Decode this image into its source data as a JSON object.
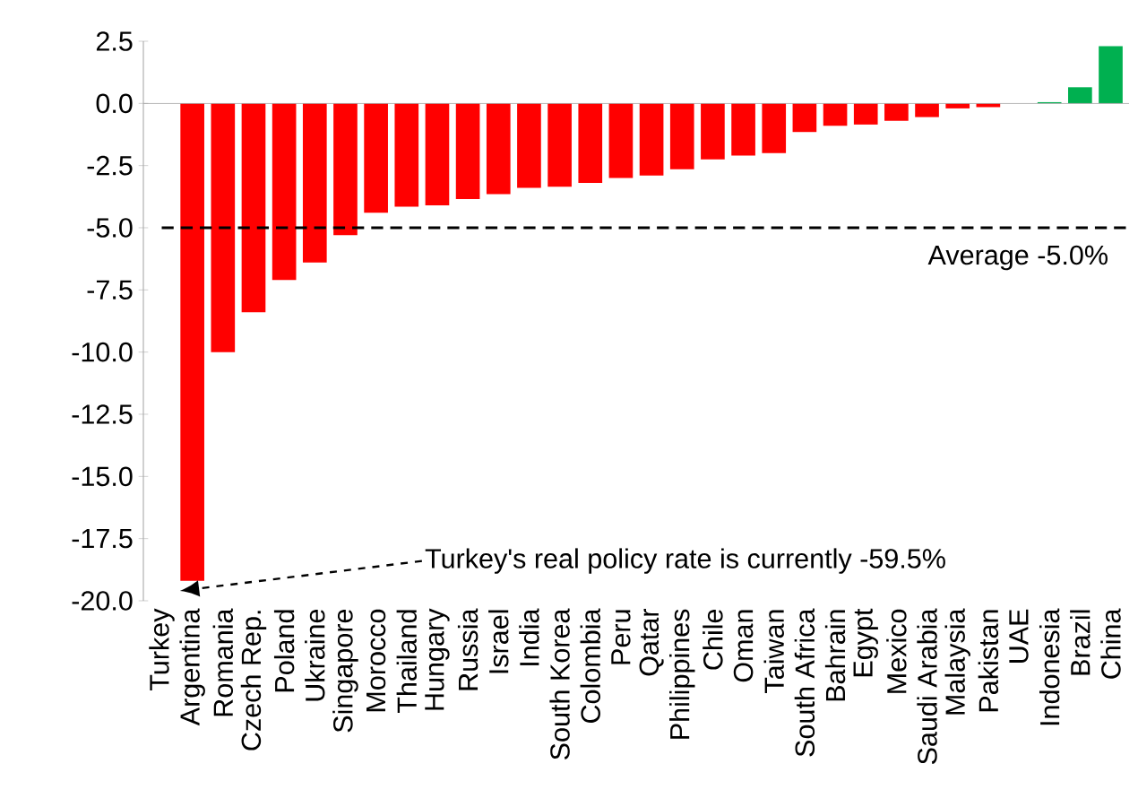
{
  "chart_data": {
    "type": "bar",
    "categories": [
      "Turkey",
      "Argentina",
      "Romania",
      "Czech Rep.",
      "Poland",
      "Ukraine",
      "Singapore",
      "Morocco",
      "Thailand",
      "Hungary",
      "Russia",
      "Israel",
      "India",
      "South Korea",
      "Colombia",
      "Peru",
      "Qatar",
      "Philippines",
      "Chile",
      "Oman",
      "Taiwan",
      "South Africa",
      "Bahrain",
      "Egypt",
      "Mexico",
      "Saudi Arabia",
      "Malaysia",
      "Pakistan",
      "UAE",
      "Indonesia",
      "Brazil",
      "China"
    ],
    "values": [
      null,
      -19.2,
      -10.0,
      -8.4,
      -7.1,
      -6.4,
      -5.3,
      -4.4,
      -4.15,
      -4.1,
      -3.85,
      -3.65,
      -3.4,
      -3.35,
      -3.2,
      -3.0,
      -2.9,
      -2.65,
      -2.25,
      -2.1,
      -2.0,
      -1.15,
      -0.9,
      -0.85,
      -0.7,
      -0.55,
      -0.2,
      -0.15,
      0,
      0.05,
      0.65,
      2.3
    ],
    "colors": [
      "#ff0000",
      "#ff0000",
      "#ff0000",
      "#ff0000",
      "#ff0000",
      "#ff0000",
      "#ff0000",
      "#ff0000",
      "#ff0000",
      "#ff0000",
      "#ff0000",
      "#ff0000",
      "#ff0000",
      "#ff0000",
      "#ff0000",
      "#ff0000",
      "#ff0000",
      "#ff0000",
      "#ff0000",
      "#ff0000",
      "#ff0000",
      "#ff0000",
      "#ff0000",
      "#ff0000",
      "#ff0000",
      "#ff0000",
      "#ff0000",
      "#ff0000",
      "#ff0000",
      "#00b050",
      "#00b050",
      "#00b050"
    ],
    "ylim": [
      -20,
      2.5
    ],
    "yticks": [
      {
        "value": 2.5,
        "label": "2.5"
      },
      {
        "value": 0,
        "label": "0.0"
      },
      {
        "value": -2.5,
        "label": "-2.5"
      },
      {
        "value": -5,
        "label": "-5.0"
      },
      {
        "value": -7.5,
        "label": "-7.5"
      },
      {
        "value": -10,
        "label": "-10.0"
      },
      {
        "value": -12.5,
        "label": "-12.5"
      },
      {
        "value": -15,
        "label": "-15.0"
      },
      {
        "value": -17.5,
        "label": "-17.5"
      },
      {
        "value": -20,
        "label": "-20.0"
      }
    ],
    "ref_lines": [
      {
        "axis": "y",
        "value": -5,
        "label": "Average -5.0%",
        "color": "#000000",
        "line_style": "dashed"
      }
    ],
    "annotations": [
      "Turkey's real policy rate is currently -59.5%"
    ]
  }
}
